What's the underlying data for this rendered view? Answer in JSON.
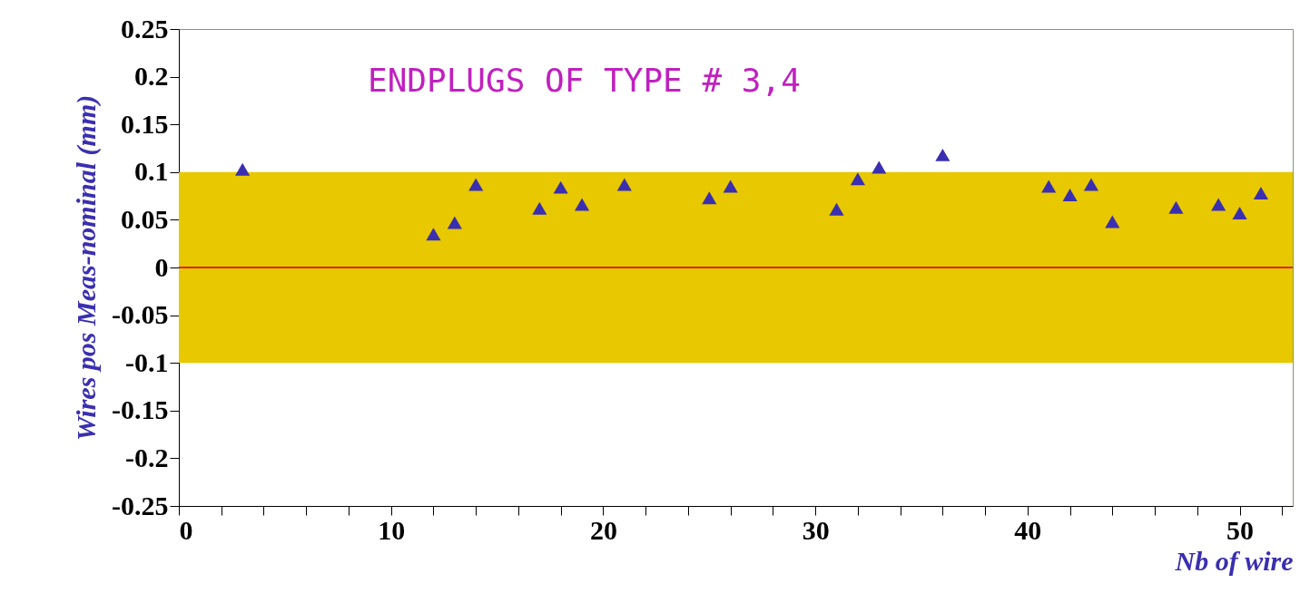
{
  "chart_data": {
    "type": "scatter",
    "xlabel": "Nb of wire",
    "ylabel": "Wires pos Meas-nominal (mm)",
    "annotations": [
      "ENDPLUGS OF TYPE # 3,4"
    ],
    "series": [
      {
        "color": "#3a2fb0",
        "x": [
          3,
          12,
          13,
          14,
          17,
          18,
          19,
          21,
          25,
          26,
          31,
          32,
          33,
          36,
          41,
          42,
          43,
          44,
          47,
          49,
          50,
          51
        ],
        "values": [
          0.103,
          0.035,
          0.047,
          0.087,
          0.062,
          0.084,
          0.066,
          0.087,
          0.073,
          0.085,
          0.061,
          0.093,
          0.105,
          0.118,
          0.085,
          0.076,
          0.087,
          0.048,
          0.063,
          0.066,
          0.057,
          0.078
        ]
      }
    ],
    "marker": "triangle",
    "grid": false,
    "xlim": [
      0,
      52.5
    ],
    "xticks": [
      0,
      {
        "value": 2,
        "label": null
      },
      {
        "value": 4,
        "label": null
      },
      {
        "value": 6,
        "label": null
      },
      {
        "value": 8,
        "label": null
      },
      10,
      {
        "value": 12,
        "label": null
      },
      {
        "value": 14,
        "label": null
      },
      {
        "value": 16,
        "label": null
      },
      {
        "value": 18,
        "label": null
      },
      20,
      {
        "value": 22,
        "label": null
      },
      {
        "value": 24,
        "label": null
      },
      {
        "value": 26,
        "label": null
      },
      {
        "value": 28,
        "label": null
      },
      30,
      {
        "value": 32,
        "label": null
      },
      {
        "value": 34,
        "label": null
      },
      {
        "value": 36,
        "label": null
      },
      {
        "value": 38,
        "label": null
      },
      40,
      {
        "value": 42,
        "label": null
      },
      {
        "value": 44,
        "label": null
      },
      {
        "value": 46,
        "label": null
      },
      {
        "value": 48,
        "label": null
      },
      50,
      {
        "value": 52,
        "label": null
      }
    ],
    "ylim": [
      -0.25,
      0.25
    ],
    "yticks": [
      -0.25,
      -0.2,
      -0.15,
      -0.1,
      -0.05,
      0,
      0.05,
      0.1,
      0.15,
      0.2,
      0.25
    ],
    "bands": [
      {
        "axis": "y",
        "from": -0.1,
        "to": 0.1,
        "color": "#e8c800"
      }
    ],
    "ref_lines": [
      {
        "axis": "y",
        "value": 0,
        "color": "#e02020",
        "line_style": "solid"
      }
    ]
  }
}
